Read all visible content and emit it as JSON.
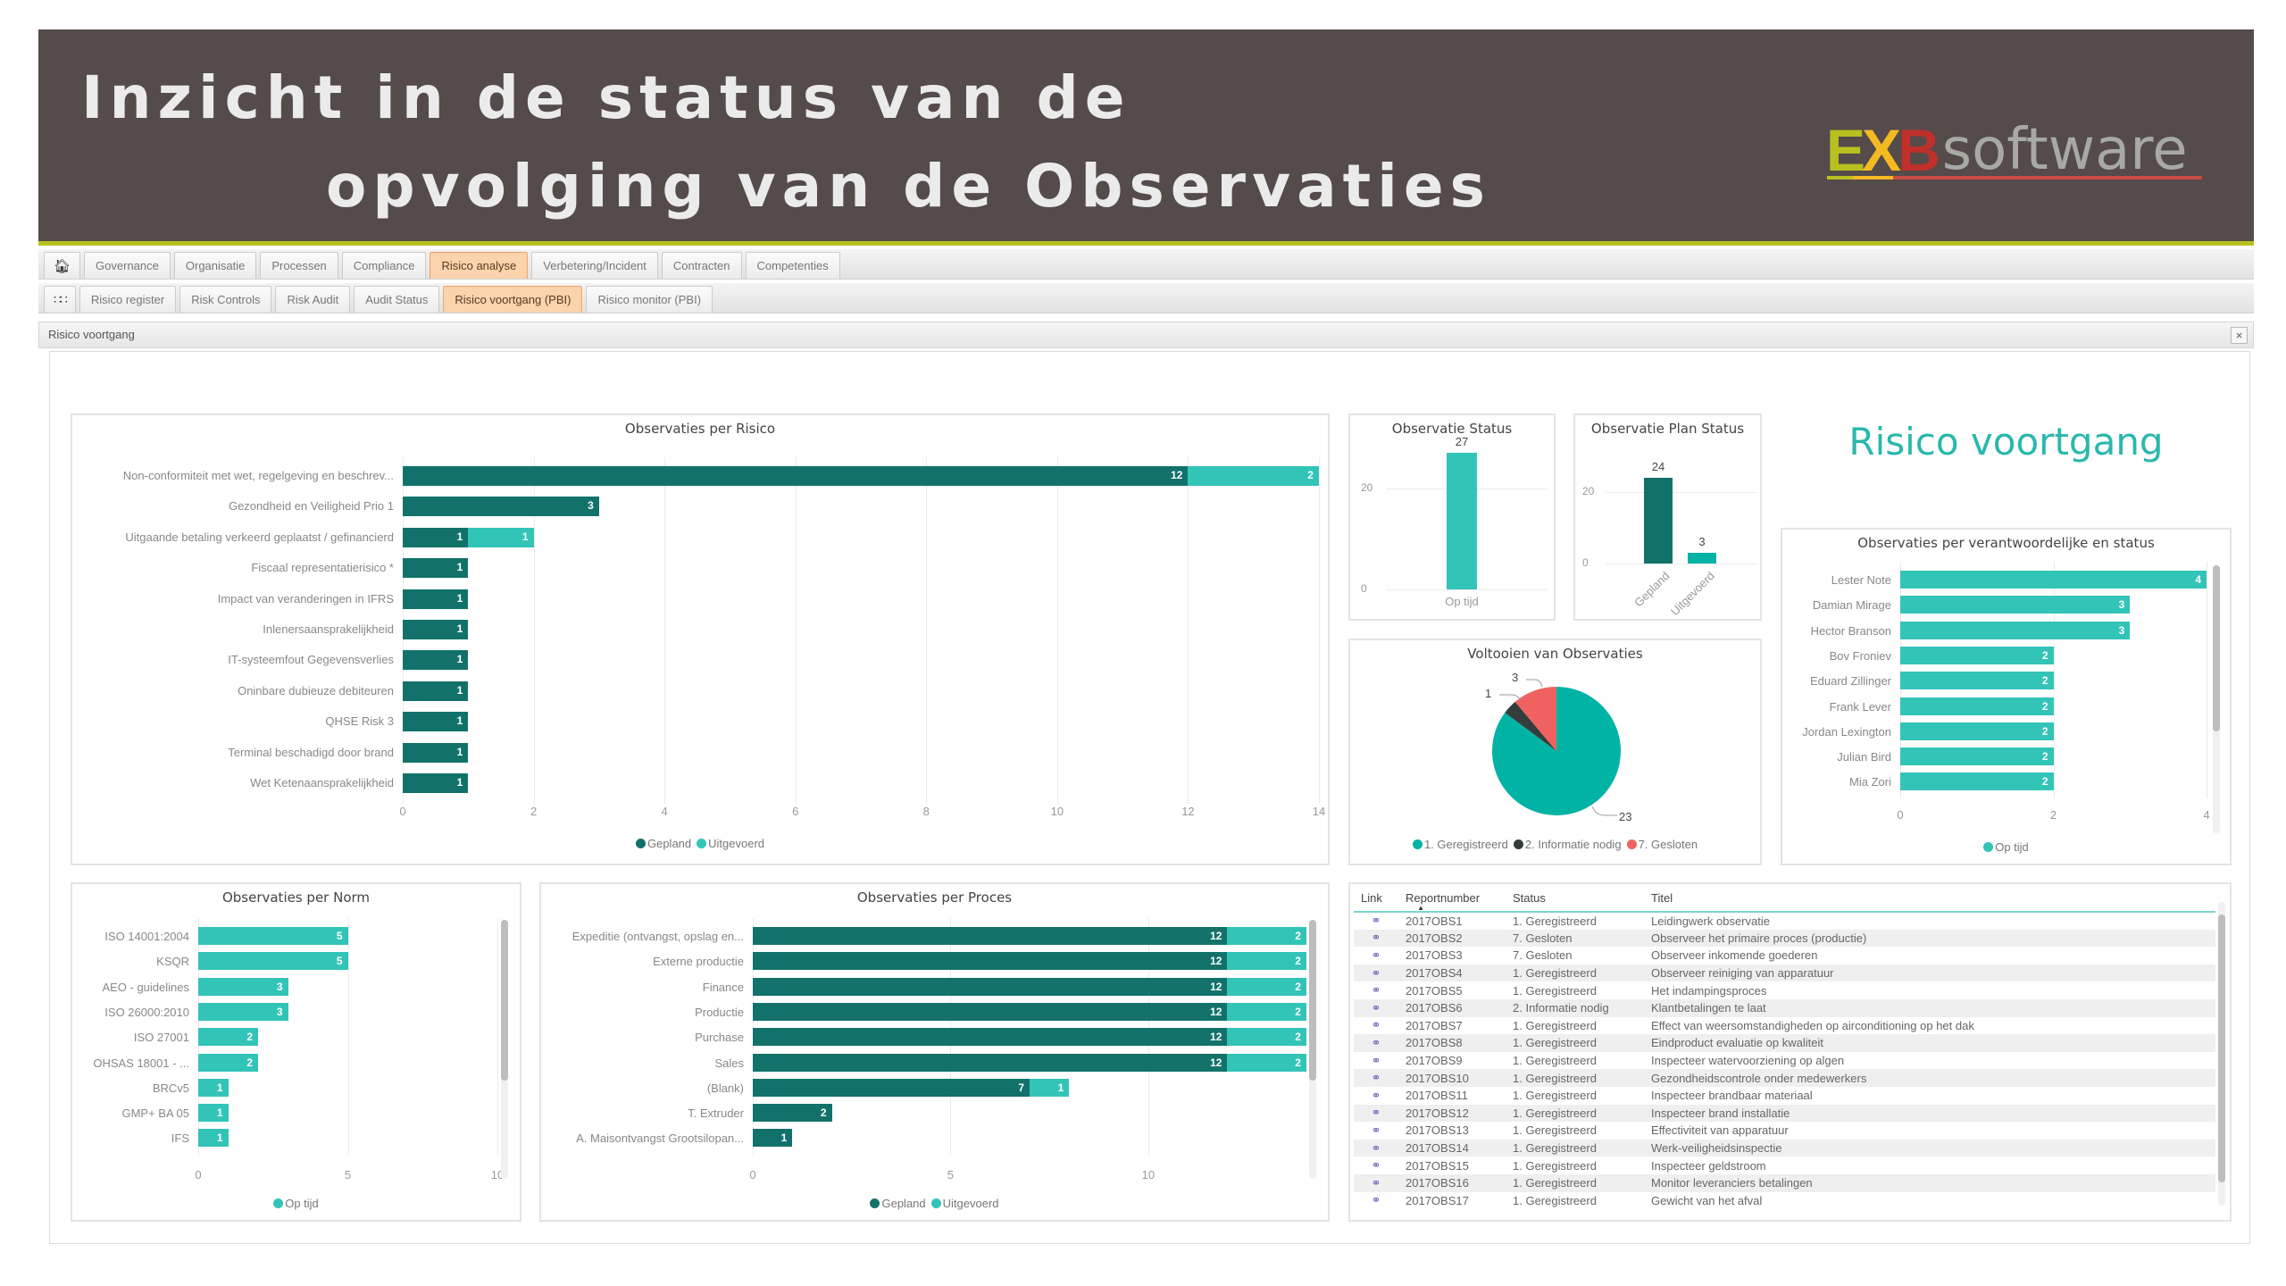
{
  "header": {
    "title_line1": "Inzicht in de status van de",
    "title_line2": "opvolging van de Observaties",
    "logo": {
      "ex_letters": [
        "E",
        "X",
        "B"
      ],
      "ex_colors": [
        "#b8c020",
        "#f5b921",
        "#c0302a"
      ],
      "word": "software"
    }
  },
  "colors": {
    "header_bg": "#544b4a",
    "accent_line": "#b8c020",
    "gepland": "#12726b",
    "uitgevoerd": "#33c4b8",
    "geregistreerd": "#00b3a5",
    "informatie_nodig": "#333d3c",
    "gesloten": "#f0625f",
    "active_tab": "#fbd3ad",
    "title_teal": "#2ab8ac"
  },
  "nav": {
    "home_icon": "home-icon",
    "main_tabs": [
      "Governance",
      "Organisatie",
      "Processen",
      "Compliance",
      "Risico analyse",
      "Verbetering/Incident",
      "Contracten",
      "Competenties"
    ],
    "main_active": "Risico analyse",
    "grid_icon": "grid-icon",
    "sub_tabs": [
      "Risico register",
      "Risk Controls",
      "Risk Audit",
      "Audit Status",
      "Risico voortgang (PBI)",
      "Risico monitor (PBI)"
    ],
    "sub_active": "Risico voortgang (PBI)"
  },
  "panel": {
    "title": "Risico voortgang",
    "close": "×"
  },
  "report_title": "Risico voortgang",
  "chart_data": [
    {
      "id": "per_risico",
      "type": "bar",
      "orientation": "horizontal",
      "stacked": true,
      "title": "Observaties per Risico",
      "categories": [
        "Non-conformiteit met wet, regelgeving en beschrev...",
        "Gezondheid en Veiligheid Prio 1",
        "Uitgaande betaling verkeerd geplaatst / gefinancierd",
        "Fiscaal representatierisico *",
        "Impact van veranderingen in IFRS",
        "Inlenersaansprakelijkheid",
        "IT-systeemfout Gegevensverlies",
        "Oninbare dubieuze debiteuren",
        "QHSE Risk 3",
        "Terminal beschadigd door brand",
        "Wet Ketenaansprakelijkheid"
      ],
      "series": [
        {
          "name": "Gepland",
          "values": [
            12,
            3,
            1,
            1,
            1,
            1,
            1,
            1,
            1,
            1,
            1
          ]
        },
        {
          "name": "Uitgevoerd",
          "values": [
            2,
            0,
            1,
            0,
            0,
            0,
            0,
            0,
            0,
            0,
            0
          ]
        }
      ],
      "xticks": [
        "0",
        "2",
        "4",
        "6",
        "8",
        "10",
        "12",
        "14"
      ],
      "xlim": [
        0,
        14
      ],
      "legend": [
        "Gepland",
        "Uitgevoerd"
      ]
    },
    {
      "id": "observatie_status",
      "type": "bar",
      "title": "Observatie Status",
      "categories": [
        "Op tijd"
      ],
      "values": [
        27
      ],
      "yticks": [
        "0",
        "20"
      ],
      "ylim": [
        0,
        30
      ]
    },
    {
      "id": "plan_status",
      "type": "bar",
      "title": "Observatie Plan Status",
      "categories": [
        "Gepland",
        "Uitgevoerd"
      ],
      "values": [
        24,
        3
      ],
      "yticks": [
        "0",
        "20"
      ],
      "ylim": [
        0,
        30
      ]
    },
    {
      "id": "voltooien",
      "type": "pie",
      "title": "Voltooien van Observaties",
      "categories": [
        "1. Geregistreerd",
        "2. Informatie nodig",
        "7. Gesloten"
      ],
      "values": [
        23,
        1,
        3
      ],
      "legend": [
        "1. Geregistreerd",
        "2. Informatie nodig",
        "7. Gesloten"
      ]
    },
    {
      "id": "per_verantwoordelijke",
      "type": "bar",
      "orientation": "horizontal",
      "title": "Observaties per verantwoordelijke en status",
      "categories": [
        "Lester Note",
        "Damian Mirage",
        "Hector Branson",
        "Bov Froniev",
        "Eduard Zillinger",
        "Frank Lever",
        "Jordan Lexington",
        "Julian Bird",
        "Mia Zori"
      ],
      "series": [
        {
          "name": "Op tijd",
          "values": [
            4,
            3,
            3,
            2,
            2,
            2,
            2,
            2,
            2
          ]
        }
      ],
      "xticks": [
        "0",
        "2",
        "4"
      ],
      "xlim": [
        0,
        4
      ],
      "legend": [
        "Op tijd"
      ]
    },
    {
      "id": "per_norm",
      "type": "bar",
      "orientation": "horizontal",
      "title": "Observaties per Norm",
      "categories": [
        "ISO 14001:2004",
        "KSQR",
        "AEO - guidelines",
        "ISO 26000:2010",
        "ISO 27001",
        "OHSAS 18001 - ...",
        "BRCv5",
        "GMP+ BA 05",
        "IFS"
      ],
      "series": [
        {
          "name": "Op tijd",
          "values": [
            5,
            5,
            3,
            3,
            2,
            2,
            1,
            1,
            1
          ]
        }
      ],
      "xticks": [
        "0",
        "5",
        "10"
      ],
      "xlim": [
        0,
        10
      ],
      "legend": [
        "Op tijd"
      ]
    },
    {
      "id": "per_proces",
      "type": "bar",
      "orientation": "horizontal",
      "stacked": true,
      "title": "Observaties per Proces",
      "categories": [
        "Expeditie (ontvangst, opslag en...",
        "Externe productie",
        "Finance",
        "Productie",
        "Purchase",
        "Sales",
        "(Blank)",
        "T. Extruder",
        "A. Maisontvangst Grootsilopan..."
      ],
      "series": [
        {
          "name": "Gepland",
          "values": [
            12,
            12,
            12,
            12,
            12,
            12,
            7,
            2,
            1
          ]
        },
        {
          "name": "Uitgevoerd",
          "values": [
            2,
            2,
            2,
            2,
            2,
            2,
            1,
            0,
            0
          ]
        }
      ],
      "xticks": [
        "0",
        "5",
        "10"
      ],
      "xlim": [
        0,
        14
      ],
      "legend": [
        "Gepland",
        "Uitgevoerd"
      ]
    }
  ],
  "table": {
    "columns": [
      "Link",
      "Reportnumber",
      "Status",
      "Titel"
    ],
    "sort_indicator": "▲",
    "rows": [
      [
        "2017OBS1",
        "1. Geregistreerd",
        "Leidingwerk observatie"
      ],
      [
        "2017OBS2",
        "7. Gesloten",
        "Observeer het primaire proces (productie)"
      ],
      [
        "2017OBS3",
        "7. Gesloten",
        "Observeer inkomende goederen"
      ],
      [
        "2017OBS4",
        "1. Geregistreerd",
        "Observeer reiniging van apparatuur"
      ],
      [
        "2017OBS5",
        "1. Geregistreerd",
        "Het indampingsproces"
      ],
      [
        "2017OBS6",
        "2. Informatie nodig",
        "Klantbetalingen te laat"
      ],
      [
        "2017OBS7",
        "1. Geregistreerd",
        "Effect van weersomstandigheden op airconditioning op het dak"
      ],
      [
        "2017OBS8",
        "1. Geregistreerd",
        "Eindproduct evaluatie op kwaliteit"
      ],
      [
        "2017OBS9",
        "1. Geregistreerd",
        "Inspecteer watervoorziening op algen"
      ],
      [
        "2017OBS10",
        "1. Geregistreerd",
        "Gezondheidscontrole onder medewerkers"
      ],
      [
        "2017OBS11",
        "1. Geregistreerd",
        "Inspecteer brandbaar materiaal"
      ],
      [
        "2017OBS12",
        "1. Geregistreerd",
        "Inspecteer brand installatie"
      ],
      [
        "2017OBS13",
        "1. Geregistreerd",
        "Effectiviteit van apparatuur"
      ],
      [
        "2017OBS14",
        "1. Geregistreerd",
        "Werk-veiligheidsinspectie"
      ],
      [
        "2017OBS15",
        "1. Geregistreerd",
        "Inspecteer geldstroom"
      ],
      [
        "2017OBS16",
        "1. Geregistreerd",
        "Monitor leveranciers betalingen"
      ],
      [
        "2017OBS17",
        "1. Geregistreerd",
        "Gewicht van het afval"
      ]
    ],
    "link_icon": "link-icon"
  }
}
